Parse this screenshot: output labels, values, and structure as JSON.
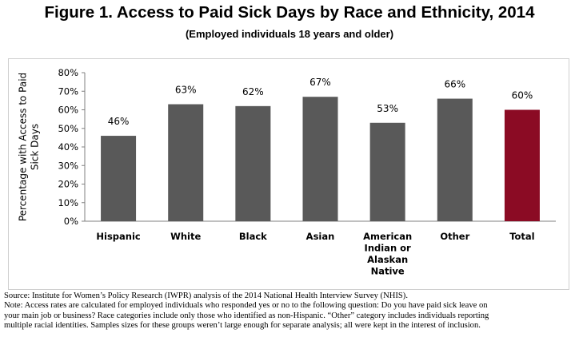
{
  "title": "Figure 1. Access to Paid Sick Days by Race and Ethnicity, 2014",
  "subtitle": "(Employed individuals 18 years and older)",
  "source": "Source: Institute for Women’s Policy Research (IWPR) analysis of the 2014 National Health Interview Survey (NHIS).",
  "note_lines": [
    "Note: Access rates are calculated for employed individuals who responded yes or no to the following question: Do you have paid sick leave on",
    "your main job or business?  Race categories include only those who identified as non-Hispanic. “Other” category includes individuals reporting",
    "multiple racial identities. Samples sizes for these groups weren’t large enough for separate analysis; all were kept in the interest of inclusion."
  ],
  "colors": {
    "bar": "#595959",
    "highlight": "#8b0b24",
    "text": "#000000"
  },
  "chart_data": {
    "type": "bar",
    "categories": [
      "Hispanic",
      "White",
      "Black",
      "Asian",
      "American Indian or Alaskan Native",
      "Other",
      "Total"
    ],
    "category_lines": [
      [
        "Hispanic"
      ],
      [
        "White"
      ],
      [
        "Black"
      ],
      [
        "Asian"
      ],
      [
        "American",
        "Indian or",
        "Alaskan",
        "Native"
      ],
      [
        "Other"
      ],
      [
        "Total"
      ]
    ],
    "values": [
      46,
      63,
      62,
      67,
      53,
      66,
      60
    ],
    "data_labels": [
      "46%",
      "63%",
      "62%",
      "67%",
      "53%",
      "66%",
      "60%"
    ],
    "highlight_category": "Total",
    "ylabel_lines": [
      "Percentage with Access to Paid",
      "Sick Days"
    ],
    "ylim": [
      0,
      80
    ],
    "yticks": [
      "0%",
      "10%",
      "20%",
      "30%",
      "40%",
      "50%",
      "60%",
      "70%",
      "80%"
    ],
    "grid": false
  }
}
